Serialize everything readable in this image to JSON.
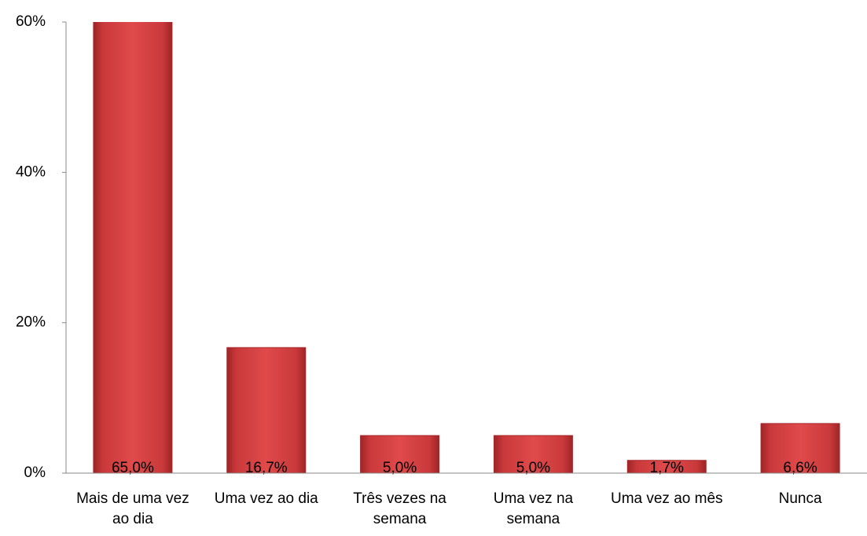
{
  "chart_data": {
    "type": "bar",
    "categories": [
      "Mais de uma vez ao dia",
      "Uma vez ao dia",
      "Três vezes na semana",
      "Uma vez na semana",
      "Uma vez ao mês",
      "Nunca"
    ],
    "values": [
      65.0,
      16.7,
      5.0,
      5.0,
      1.7,
      6.6
    ],
    "value_labels": [
      "65,0%",
      "16,7%",
      "5,0%",
      "5,0%",
      "1,7%",
      "6,6%"
    ],
    "color": "#c9393b",
    "ylim": [
      0,
      60
    ],
    "yticks": [
      {
        "value": 0,
        "label": "0%"
      },
      {
        "value": 20,
        "label": "20%"
      },
      {
        "value": 40,
        "label": "40%"
      },
      {
        "value": 60,
        "label": "60%"
      }
    ],
    "grid": false
  }
}
